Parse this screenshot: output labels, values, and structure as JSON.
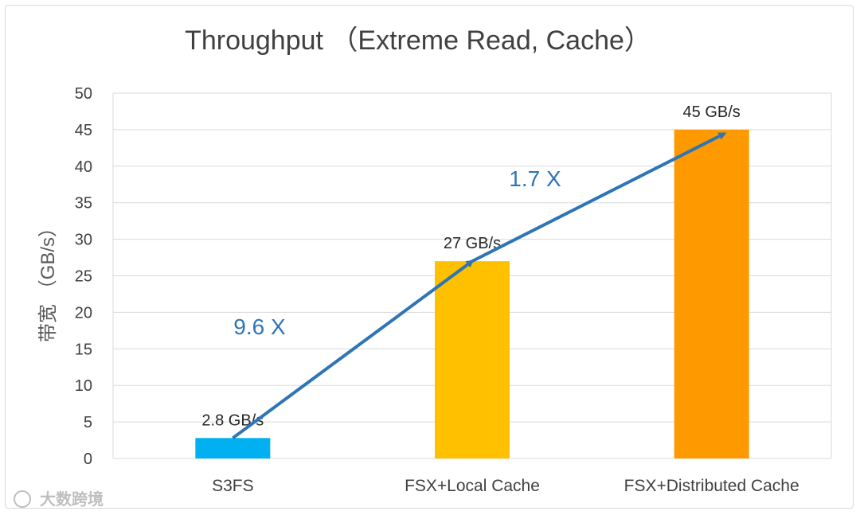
{
  "chart_data": {
    "type": "bar",
    "title": "Throughput （Extreme Read, Cache）",
    "categories": [
      "S3FS",
      "FSX+Local Cache",
      "FSX+Distributed Cache"
    ],
    "values": [
      2.8,
      27,
      45
    ],
    "data_labels": [
      "2.8 GB/s",
      "27 GB/s",
      "45 GB/s"
    ],
    "bar_colors": [
      "#00B0F0",
      "#FFC000",
      "#FF9900"
    ],
    "ylabel": "带宽 （GB/s）",
    "xlabel": "",
    "ylim": [
      0,
      50
    ],
    "yticks": [
      0,
      5,
      10,
      15,
      20,
      25,
      30,
      35,
      40,
      45,
      50
    ],
    "grid": true,
    "annotations": [
      {
        "text": "9.6 X",
        "near_category": 0
      },
      {
        "text": "1.7 X",
        "near_category": 1
      }
    ],
    "arrow_color": "#2E75B6"
  },
  "watermark": {
    "text": "大数跨境"
  }
}
